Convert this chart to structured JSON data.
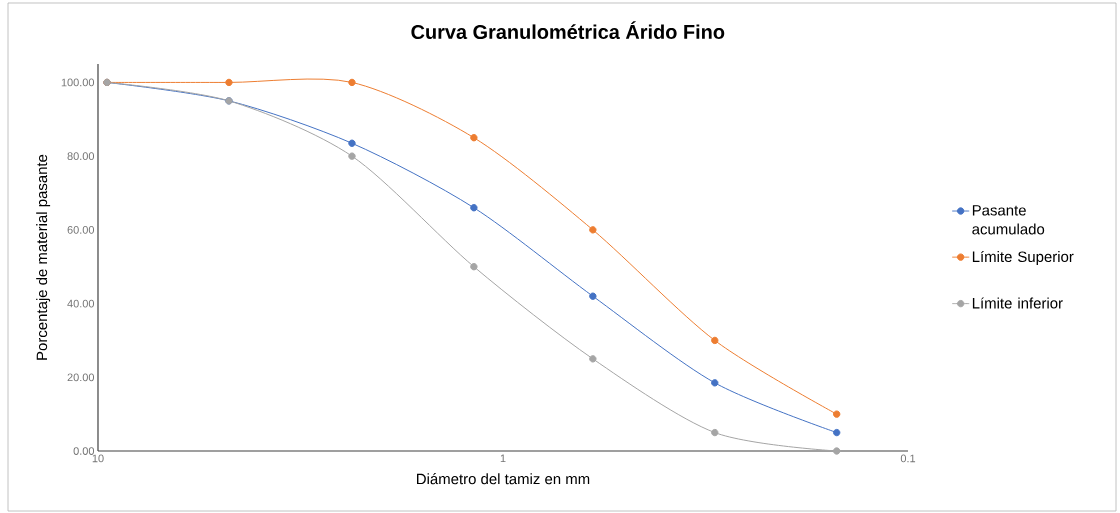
{
  "chart_data": {
    "type": "line",
    "title": "Curva Granulométrica Árido Fino",
    "xlabel": "Diámetro del tamiz en  mm",
    "ylabel": "Porcentaje de material pasante",
    "x": [
      9.5,
      4.75,
      2.36,
      1.18,
      0.6,
      0.3,
      0.15
    ],
    "series": [
      {
        "name": "Pasante acumulado",
        "color": "#4472c4",
        "values": [
          100,
          95,
          83.5,
          66,
          42,
          18.5,
          5
        ]
      },
      {
        "name": "Límite Superior",
        "color": "#ed7d31",
        "values": [
          100,
          100,
          100,
          85,
          60,
          30,
          10
        ]
      },
      {
        "name": "Límite inferior",
        "color": "#a5a5a5",
        "values": [
          100,
          95,
          80,
          50,
          25,
          5,
          0
        ]
      }
    ],
    "log": "x",
    "xlim": [
      10,
      0.1
    ],
    "xticks": [
      10,
      1,
      0.1
    ],
    "ylim": [
      0,
      105
    ],
    "yticks": [
      {
        "value": 0,
        "label": "0.00"
      },
      {
        "value": 20,
        "label": "20.00"
      },
      {
        "value": 40,
        "label": "40.00"
      },
      {
        "value": 60,
        "label": "60.00"
      },
      {
        "value": 80,
        "label": "80.00"
      },
      {
        "value": 100,
        "label": "100.00"
      }
    ],
    "grid": false,
    "legend": "right",
    "marker": "circle",
    "line_style": "solid"
  }
}
